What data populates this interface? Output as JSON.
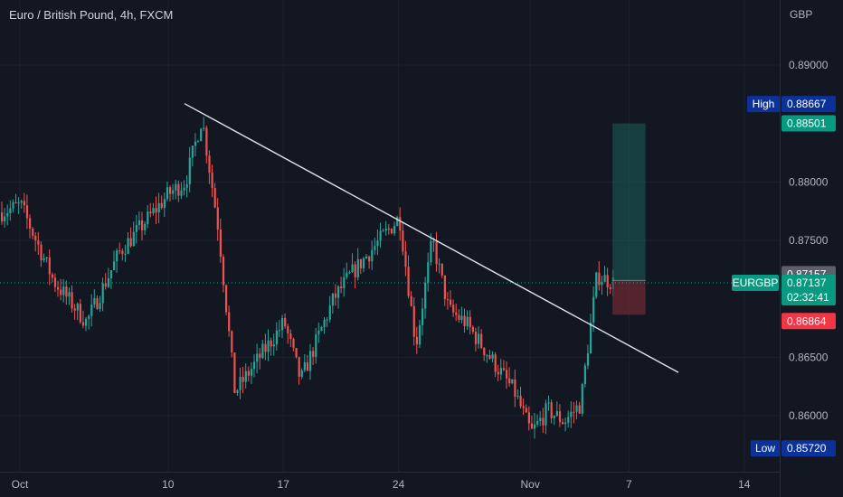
{
  "title": "Euro / British Pound, 4h, FXCM",
  "currency": "GBP",
  "colors": {
    "background": "#131722",
    "grid": "#1e222d",
    "up": "#26a69a",
    "down": "#ef5350",
    "trendline": "#e0e3eb",
    "profit_zone": "#1b5e55",
    "loss_zone": "#6b2a33",
    "label_dark": "#0c3299"
  },
  "chart_data": {
    "type": "candlestick",
    "symbol": "EURGBP",
    "ylim": [
      0.8557,
      0.8937
    ],
    "y_ticks": [
      "0.89000",
      "0.88000",
      "0.87500",
      "0.86500",
      "0.86000"
    ],
    "x_ticks": [
      "Oct",
      "10",
      "17",
      "24",
      "Nov",
      "7",
      "14"
    ],
    "grid": true,
    "price_series_approx": [
      {
        "date": "2022-09-29",
        "close": 0.877
      },
      {
        "date": "2022-10-01",
        "close": 0.878
      },
      {
        "date": "2022-10-03",
        "close": 0.8715
      },
      {
        "date": "2022-10-05",
        "close": 0.868
      },
      {
        "date": "2022-10-07",
        "close": 0.874
      },
      {
        "date": "2022-10-10",
        "close": 0.879
      },
      {
        "date": "2022-10-11",
        "close": 0.88
      },
      {
        "date": "2022-10-12",
        "close": 0.8855
      },
      {
        "date": "2022-10-13",
        "close": 0.876
      },
      {
        "date": "2022-10-14",
        "close": 0.862
      },
      {
        "date": "2022-10-17",
        "close": 0.868
      },
      {
        "date": "2022-10-18",
        "close": 0.863
      },
      {
        "date": "2022-10-20",
        "close": 0.87
      },
      {
        "date": "2022-10-21",
        "close": 0.872
      },
      {
        "date": "2022-10-24",
        "close": 0.877
      },
      {
        "date": "2022-10-25",
        "close": 0.866
      },
      {
        "date": "2022-10-26",
        "close": 0.875
      },
      {
        "date": "2022-10-27",
        "close": 0.869
      },
      {
        "date": "2022-10-28",
        "close": 0.868
      },
      {
        "date": "2022-10-31",
        "close": 0.862
      },
      {
        "date": "2022-11-01",
        "close": 0.8585
      },
      {
        "date": "2022-11-02",
        "close": 0.8605
      },
      {
        "date": "2022-11-03",
        "close": 0.8595
      },
      {
        "date": "2022-11-04",
        "close": 0.861
      },
      {
        "date": "2022-11-05",
        "close": 0.872
      },
      {
        "date": "2022-11-06",
        "close": 0.87137
      }
    ],
    "trendline": [
      {
        "date": "2022-10-11",
        "price": 0.8867
      },
      {
        "date": "2022-11-10",
        "price": 0.8637
      }
    ],
    "position": {
      "entry": "0.87157",
      "take_profit": "0.88501",
      "stop_loss": "0.86864",
      "start_date": "2022-11-06",
      "end_date": "2022-11-08"
    },
    "current_price": "0.87137",
    "countdown": "02:32:41",
    "high_label": "High",
    "high": "0.88667",
    "low_label": "Low",
    "low": "0.85720"
  }
}
